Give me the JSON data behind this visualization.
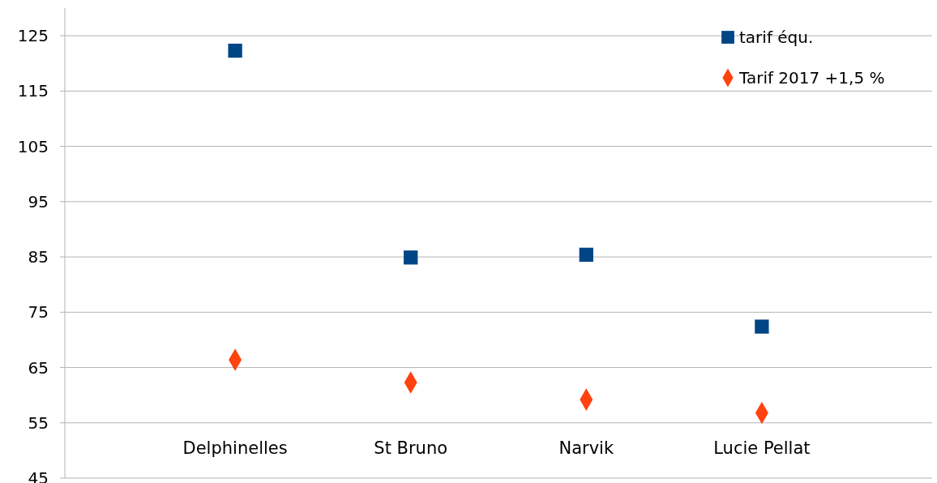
{
  "chart_data": {
    "type": "scatter",
    "categories": [
      "Delphinelles",
      "St Bruno",
      "Narvik",
      "Lucie Pellat"
    ],
    "series": [
      {
        "name": "tarif équ.",
        "color": "#004586",
        "marker": "square",
        "values": [
          122.3,
          84.9,
          85.4,
          72.4
        ]
      },
      {
        "name": "Tarif 2017 +1,5 %",
        "color": "#ff420e",
        "marker": "diamond",
        "values": [
          66.4,
          62.3,
          59.2,
          56.8
        ]
      }
    ],
    "ylim": [
      45,
      130
    ],
    "yticks": [
      45,
      55,
      65,
      75,
      85,
      95,
      105,
      115,
      125
    ],
    "grid": "y",
    "legend": "top right"
  }
}
